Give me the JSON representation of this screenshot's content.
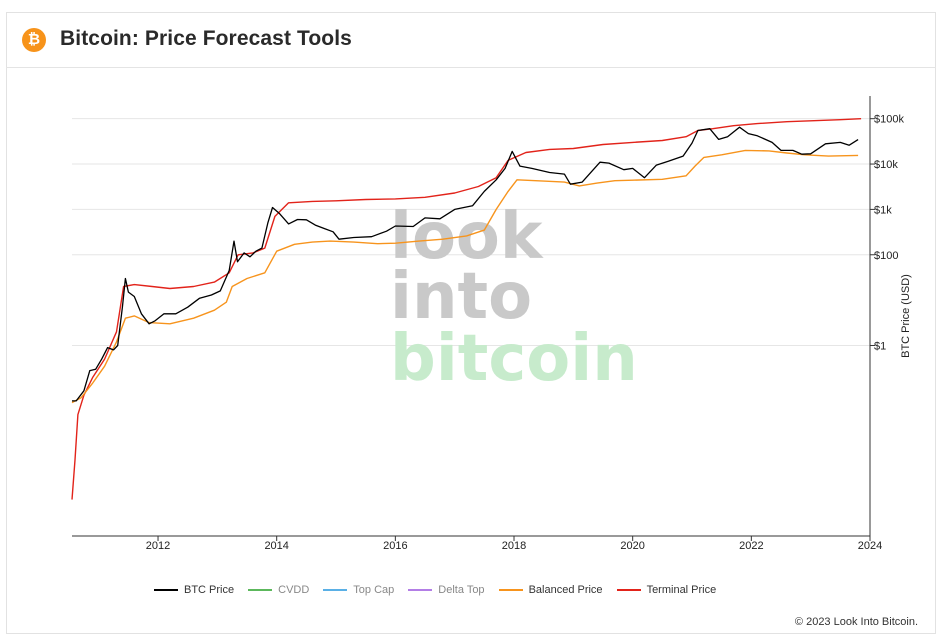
{
  "header": {
    "logo_glyph": "₿",
    "title": "Bitcoin: Price Forecast Tools"
  },
  "watermark": {
    "line1": "look",
    "line2": "into",
    "line3": "bitcoin"
  },
  "chart_data": {
    "type": "line",
    "title": "Bitcoin: Price Forecast Tools",
    "xlabel": "",
    "ylabel": "BTC Price (USD)",
    "y_scale": "log",
    "xlim": [
      2010.55,
      2024.0
    ],
    "ylim_log10": [
      -4.2,
      5.5
    ],
    "x_ticks": [
      {
        "value": 2012,
        "label": "2012"
      },
      {
        "value": 2014,
        "label": "2014"
      },
      {
        "value": 2016,
        "label": "2016"
      },
      {
        "value": 2018,
        "label": "2018"
      },
      {
        "value": 2020,
        "label": "2020"
      },
      {
        "value": 2022,
        "label": "2022"
      },
      {
        "value": 2024,
        "label": "2024"
      }
    ],
    "y_ticks": [
      {
        "value": 1,
        "label": "$1"
      },
      {
        "value": 100,
        "label": "$100"
      },
      {
        "value": 1000,
        "label": "$1k"
      },
      {
        "value": 10000,
        "label": "$10k"
      },
      {
        "value": 100000,
        "label": "$100k"
      }
    ],
    "series": [
      {
        "name": "BTC Price",
        "color": "#000000",
        "points": [
          [
            2010.55,
            0.06
          ],
          [
            2010.62,
            0.06
          ],
          [
            2010.75,
            0.1
          ],
          [
            2010.85,
            0.28
          ],
          [
            2010.95,
            0.3
          ],
          [
            2011.05,
            0.5
          ],
          [
            2011.15,
            0.9
          ],
          [
            2011.25,
            0.8
          ],
          [
            2011.32,
            1.0
          ],
          [
            2011.4,
            7
          ],
          [
            2011.45,
            30
          ],
          [
            2011.5,
            15
          ],
          [
            2011.6,
            12
          ],
          [
            2011.72,
            5
          ],
          [
            2011.85,
            3
          ],
          [
            2011.95,
            3.5
          ],
          [
            2012.1,
            5
          ],
          [
            2012.3,
            5
          ],
          [
            2012.5,
            7
          ],
          [
            2012.7,
            11
          ],
          [
            2012.9,
            13
          ],
          [
            2013.05,
            16
          ],
          [
            2013.2,
            45
          ],
          [
            2013.28,
            200
          ],
          [
            2013.34,
            70
          ],
          [
            2013.45,
            110
          ],
          [
            2013.55,
            90
          ],
          [
            2013.65,
            120
          ],
          [
            2013.75,
            140
          ],
          [
            2013.85,
            500
          ],
          [
            2013.93,
            1100
          ],
          [
            2014.05,
            800
          ],
          [
            2014.2,
            480
          ],
          [
            2014.35,
            600
          ],
          [
            2014.5,
            590
          ],
          [
            2014.65,
            450
          ],
          [
            2014.8,
            380
          ],
          [
            2014.95,
            320
          ],
          [
            2015.05,
            220
          ],
          [
            2015.3,
            240
          ],
          [
            2015.6,
            250
          ],
          [
            2015.85,
            330
          ],
          [
            2016.0,
            430
          ],
          [
            2016.3,
            420
          ],
          [
            2016.5,
            650
          ],
          [
            2016.75,
            620
          ],
          [
            2017.0,
            1000
          ],
          [
            2017.3,
            1200
          ],
          [
            2017.5,
            2500
          ],
          [
            2017.7,
            4500
          ],
          [
            2017.85,
            8000
          ],
          [
            2017.97,
            19000
          ],
          [
            2018.1,
            9000
          ],
          [
            2018.3,
            8000
          ],
          [
            2018.6,
            6500
          ],
          [
            2018.85,
            6000
          ],
          [
            2018.95,
            3600
          ],
          [
            2019.15,
            4000
          ],
          [
            2019.45,
            11000
          ],
          [
            2019.6,
            10500
          ],
          [
            2019.85,
            7500
          ],
          [
            2020.0,
            8000
          ],
          [
            2020.2,
            5000
          ],
          [
            2020.4,
            9500
          ],
          [
            2020.6,
            11500
          ],
          [
            2020.85,
            15000
          ],
          [
            2021.0,
            29000
          ],
          [
            2021.1,
            55000
          ],
          [
            2021.3,
            60000
          ],
          [
            2021.45,
            35000
          ],
          [
            2021.6,
            40000
          ],
          [
            2021.8,
            65000
          ],
          [
            2021.95,
            47000
          ],
          [
            2022.1,
            42000
          ],
          [
            2022.35,
            30000
          ],
          [
            2022.5,
            20000
          ],
          [
            2022.7,
            20000
          ],
          [
            2022.85,
            16500
          ],
          [
            2023.0,
            16800
          ],
          [
            2023.25,
            28000
          ],
          [
            2023.5,
            30000
          ],
          [
            2023.65,
            26000
          ],
          [
            2023.8,
            34500
          ]
        ]
      },
      {
        "name": "CVDD",
        "color": "#5cb85c",
        "points": []
      },
      {
        "name": "Top Cap",
        "color": "#5ab0e6",
        "points": []
      },
      {
        "name": "Delta Top",
        "color": "#b37ee6",
        "points": []
      },
      {
        "name": "Balanced Price",
        "color": "#f7941d",
        "points": [
          [
            2010.55,
            0.055
          ],
          [
            2010.7,
            0.07
          ],
          [
            2010.9,
            0.15
          ],
          [
            2011.1,
            0.35
          ],
          [
            2011.3,
            1.2
          ],
          [
            2011.45,
            4
          ],
          [
            2011.6,
            4.5
          ],
          [
            2011.85,
            3.2
          ],
          [
            2012.2,
            3
          ],
          [
            2012.6,
            4
          ],
          [
            2012.95,
            6
          ],
          [
            2013.15,
            9
          ],
          [
            2013.25,
            20
          ],
          [
            2013.5,
            30
          ],
          [
            2013.8,
            40
          ],
          [
            2014.0,
            120
          ],
          [
            2014.3,
            170
          ],
          [
            2014.6,
            190
          ],
          [
            2014.9,
            200
          ],
          [
            2015.3,
            190
          ],
          [
            2015.7,
            175
          ],
          [
            2016.0,
            180
          ],
          [
            2016.4,
            200
          ],
          [
            2016.8,
            220
          ],
          [
            2017.2,
            260
          ],
          [
            2017.5,
            350
          ],
          [
            2017.7,
            1000
          ],
          [
            2017.9,
            2500
          ],
          [
            2018.05,
            4500
          ],
          [
            2018.5,
            4200
          ],
          [
            2018.85,
            4000
          ],
          [
            2019.1,
            3300
          ],
          [
            2019.4,
            3800
          ],
          [
            2019.7,
            4300
          ],
          [
            2020.0,
            4400
          ],
          [
            2020.5,
            4600
          ],
          [
            2020.9,
            5500
          ],
          [
            2021.05,
            9000
          ],
          [
            2021.2,
            14000
          ],
          [
            2021.5,
            16000
          ],
          [
            2021.9,
            20000
          ],
          [
            2022.3,
            19500
          ],
          [
            2022.6,
            17500
          ],
          [
            2022.9,
            16000
          ],
          [
            2023.3,
            15000
          ],
          [
            2023.8,
            15500
          ]
        ]
      },
      {
        "name": "Terminal Price",
        "color": "#e2231a",
        "points": [
          [
            2010.55,
            0.0004
          ],
          [
            2010.6,
            0.003
          ],
          [
            2010.65,
            0.03
          ],
          [
            2010.75,
            0.08
          ],
          [
            2010.9,
            0.2
          ],
          [
            2011.1,
            0.5
          ],
          [
            2011.3,
            2
          ],
          [
            2011.42,
            20
          ],
          [
            2011.6,
            22
          ],
          [
            2011.9,
            20
          ],
          [
            2012.2,
            18
          ],
          [
            2012.6,
            20
          ],
          [
            2012.95,
            25
          ],
          [
            2013.2,
            40
          ],
          [
            2013.35,
            100
          ],
          [
            2013.6,
            110
          ],
          [
            2013.8,
            140
          ],
          [
            2013.97,
            700
          ],
          [
            2014.2,
            1400
          ],
          [
            2014.6,
            1500
          ],
          [
            2015.0,
            1550
          ],
          [
            2015.5,
            1650
          ],
          [
            2016.0,
            1700
          ],
          [
            2016.5,
            1850
          ],
          [
            2017.0,
            2300
          ],
          [
            2017.4,
            3200
          ],
          [
            2017.7,
            5000
          ],
          [
            2017.9,
            12000
          ],
          [
            2018.2,
            18000
          ],
          [
            2018.6,
            21000
          ],
          [
            2019.0,
            22000
          ],
          [
            2019.5,
            27000
          ],
          [
            2020.0,
            30000
          ],
          [
            2020.5,
            33000
          ],
          [
            2020.9,
            40000
          ],
          [
            2021.1,
            55000
          ],
          [
            2021.35,
            60000
          ],
          [
            2021.7,
            70000
          ],
          [
            2022.1,
            78000
          ],
          [
            2022.6,
            86000
          ],
          [
            2023.0,
            90000
          ],
          [
            2023.5,
            95000
          ],
          [
            2023.85,
            100000
          ]
        ]
      }
    ],
    "legend_position": "bottom-center",
    "grid": true
  },
  "footer": {
    "copyright": "© 2023 Look Into Bitcoin."
  }
}
